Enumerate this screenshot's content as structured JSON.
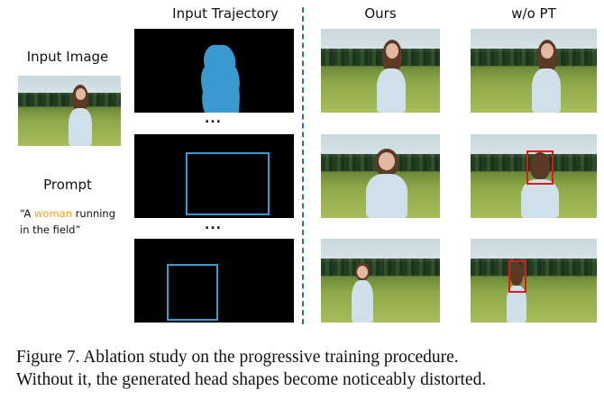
{
  "headers": {
    "input_trajectory": "Input Trajectory",
    "ours": "Ours",
    "wo_pt": "w/o PT"
  },
  "left": {
    "input_image_label": "Input Image",
    "prompt_label": "Prompt",
    "prompt_open": "“A ",
    "prompt_highlight": "woman",
    "prompt_rest_line1": " running",
    "prompt_line2": "in the field”",
    "highlight_color": "#f0a020"
  },
  "ellipsis": "...",
  "colors": {
    "trajectory_blue": "#3a9ad0",
    "distortion_red": "#e01818",
    "divider_blue": "#2a6fd0"
  },
  "caption": {
    "line1": "Figure 7.  Ablation study on the progressive training procedure.",
    "line2": "Without it, the generated head shapes become noticeably distorted."
  }
}
